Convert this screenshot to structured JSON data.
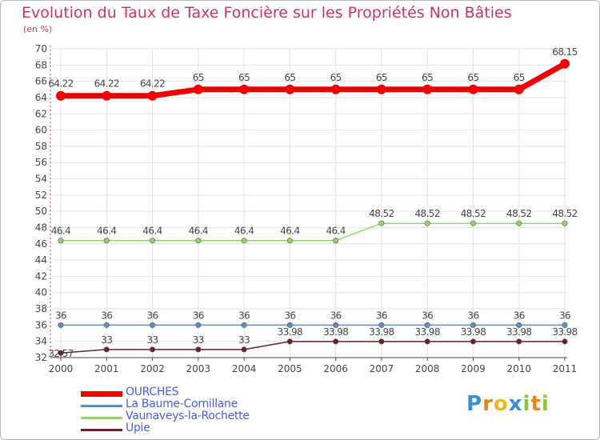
{
  "chart_data": {
    "type": "line",
    "title": "Evolution du Taux de Taxe Foncière sur les Propriétés Non Bâties",
    "ylabel": "(en %)",
    "xlabel": "",
    "x": [
      "2000",
      "2001",
      "2002",
      "2003",
      "2004",
      "2005",
      "2006",
      "2007",
      "2008",
      "2009",
      "2010",
      "2011"
    ],
    "ylim": [
      32,
      70
    ],
    "yticks": [
      32,
      34,
      36,
      38,
      40,
      42,
      44,
      46,
      48,
      50,
      52,
      54,
      56,
      58,
      60,
      62,
      64,
      66,
      68,
      70
    ],
    "series": [
      {
        "name": "OURCHES",
        "color": "#ee0000",
        "values": [
          64.22,
          64.22,
          64.22,
          65,
          65,
          65,
          65,
          65,
          65,
          65,
          65,
          68.15
        ],
        "labels": [
          "64.22",
          "64.22",
          "64.22",
          "65",
          "65",
          "65",
          "65",
          "65",
          "65",
          "65",
          "65",
          "68.15"
        ]
      },
      {
        "name": "La Baume-Cornillane",
        "color": "#5b8fc6",
        "values": [
          36,
          36,
          36,
          36,
          36,
          36,
          36,
          36,
          36,
          36,
          36,
          36
        ],
        "labels": [
          "36",
          "36",
          "36",
          "36",
          "36",
          "36",
          "36",
          "36",
          "36",
          "36",
          "36",
          "36"
        ]
      },
      {
        "name": "Vaunaveys-la-Rochette",
        "color": "#90d865",
        "values": [
          46.4,
          46.4,
          46.4,
          46.4,
          46.4,
          46.4,
          46.4,
          48.52,
          48.52,
          48.52,
          48.52,
          48.52
        ],
        "labels": [
          "46.4",
          "46.4",
          "46.4",
          "46.4",
          "46.4",
          "46.4",
          "46.4",
          "48.52",
          "48.52",
          "48.52",
          "48.52",
          "48.52"
        ]
      },
      {
        "name": "Upie",
        "color": "#6b1f27",
        "values": [
          32.57,
          33,
          33,
          33,
          33,
          33.98,
          33.98,
          33.98,
          33.98,
          33.98,
          33.98,
          33.98
        ],
        "labels": [
          "32.57",
          "33",
          "33",
          "33",
          "33",
          "33.98",
          "33.98",
          "33.98",
          "33.98",
          "33.98",
          "33.98",
          "33.98"
        ]
      }
    ]
  },
  "brand": {
    "letters": [
      "P",
      "r",
      "o",
      "x",
      "i",
      "t",
      "i"
    ],
    "colors": [
      "#3a8fd0",
      "#e8841c",
      "#e8b81c",
      "#3a8fd0",
      "#8cc63e",
      "#e8841c",
      "#8cc63e"
    ]
  }
}
